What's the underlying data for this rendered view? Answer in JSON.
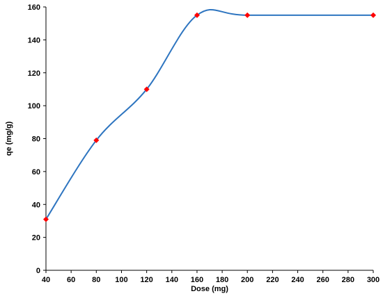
{
  "chart_data": {
    "type": "line",
    "title": "",
    "xlabel": "Dose (mg)",
    "ylabel": "qe (mg/g)",
    "xlim": [
      40,
      300
    ],
    "ylim": [
      0,
      160
    ],
    "xticks": [
      40,
      60,
      80,
      100,
      120,
      140,
      160,
      180,
      200,
      220,
      240,
      260,
      280,
      300
    ],
    "yticks": [
      0,
      20,
      40,
      60,
      80,
      100,
      120,
      140,
      160
    ],
    "x": [
      40,
      80,
      120,
      160,
      200,
      300
    ],
    "series": [
      {
        "values": [
          31,
          79,
          110,
          155,
          155,
          155
        ],
        "color": "#2e75c0",
        "marker": "diamond",
        "marker_color": "#ff0000",
        "smooth": true
      }
    ],
    "grid": false,
    "legend": "none"
  }
}
